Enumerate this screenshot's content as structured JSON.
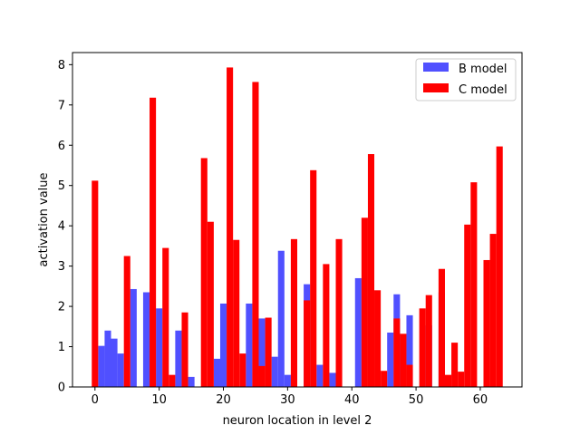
{
  "chart_data": {
    "type": "bar",
    "xlabel": "neuron location in level 2",
    "ylabel": "activation value",
    "xlim": [
      -3.5,
      66.5
    ],
    "ylim": [
      0,
      8.3
    ],
    "x_ticks": [
      0,
      10,
      20,
      30,
      40,
      50,
      60
    ],
    "y_ticks": [
      0,
      1,
      2,
      3,
      4,
      5,
      6,
      7,
      8
    ],
    "grid": false,
    "legend_position": "top-right",
    "series": [
      {
        "name": "B model",
        "color": "#5050ff",
        "x": [
          0,
          1,
          2,
          3,
          4,
          5,
          6,
          7,
          8,
          9,
          10,
          11,
          12,
          13,
          14,
          15,
          16,
          17,
          18,
          19,
          20,
          21,
          22,
          23,
          24,
          25,
          26,
          27,
          28,
          29,
          30,
          31,
          32,
          33,
          34,
          35,
          36,
          37,
          38,
          39,
          40,
          41,
          42,
          43,
          44,
          45,
          46,
          47,
          48,
          49,
          50,
          51,
          52,
          53,
          54,
          55,
          56,
          57,
          58,
          59,
          60,
          61,
          62,
          63
        ],
        "values": [
          0,
          1.02,
          1.4,
          1.2,
          0.83,
          0,
          2.43,
          0,
          2.35,
          0,
          1.95,
          0,
          0,
          1.4,
          0,
          0.25,
          0,
          0,
          0,
          0.7,
          2.07,
          0,
          0,
          0,
          2.07,
          0,
          1.7,
          0,
          0.75,
          3.38,
          0.3,
          0,
          0,
          2.55,
          0,
          0.55,
          0,
          0.35,
          0,
          0,
          0,
          2.7,
          0,
          0,
          0,
          0,
          1.35,
          2.3,
          0,
          1.78,
          0,
          0,
          1.53,
          0,
          2.35,
          0,
          0,
          0,
          0,
          0,
          0,
          0,
          0,
          0
        ]
      },
      {
        "name": "C model",
        "color": "#ff0000",
        "x": [
          0,
          1,
          2,
          3,
          4,
          5,
          6,
          7,
          8,
          9,
          10,
          11,
          12,
          13,
          14,
          15,
          16,
          17,
          18,
          19,
          20,
          21,
          22,
          23,
          24,
          25,
          26,
          27,
          28,
          29,
          30,
          31,
          32,
          33,
          34,
          35,
          36,
          37,
          38,
          39,
          40,
          41,
          42,
          43,
          44,
          45,
          46,
          47,
          48,
          49,
          50,
          51,
          52,
          53,
          54,
          55,
          56,
          57,
          58,
          59,
          60,
          61,
          62,
          63
        ],
        "values": [
          5.12,
          0,
          0,
          0,
          0,
          3.25,
          0,
          0,
          0,
          7.18,
          0,
          3.45,
          0.3,
          0,
          1.85,
          0,
          0,
          5.68,
          4.1,
          0,
          0,
          7.93,
          3.65,
          0.83,
          0,
          7.57,
          0.52,
          1.72,
          0,
          0,
          0,
          3.67,
          0,
          2.15,
          5.38,
          0,
          3.05,
          0,
          3.67,
          0,
          0,
          0,
          4.2,
          5.78,
          2.4,
          0.4,
          0,
          1.7,
          1.32,
          0.55,
          0,
          1.95,
          2.28,
          0,
          2.93,
          0.3,
          1.1,
          0.38,
          4.03,
          5.08,
          0,
          3.15,
          3.8,
          5.97
        ]
      }
    ]
  }
}
